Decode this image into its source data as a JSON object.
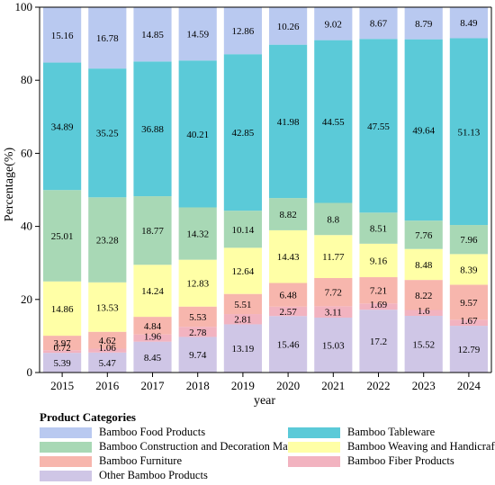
{
  "chart_data": {
    "type": "bar",
    "stacked": true,
    "title": "",
    "xlabel": "year",
    "ylabel": "Percentage(%)",
    "ylim": [
      0,
      100
    ],
    "yticks": [
      0,
      20,
      40,
      60,
      80,
      100
    ],
    "categories": [
      "2015",
      "2016",
      "2017",
      "2018",
      "2019",
      "2020",
      "2021",
      "2022",
      "2023",
      "2024"
    ],
    "series": [
      {
        "name": "Other Bamboo Products",
        "color": "#cfc6e6",
        "values": [
          5.39,
          5.47,
          8.45,
          9.74,
          13.19,
          15.46,
          15.03,
          17.2,
          15.52,
          12.79
        ]
      },
      {
        "name": "Bamboo Fiber Products",
        "color": "#f2b3c0",
        "values": [
          0.72,
          1.06,
          1.96,
          2.78,
          2.81,
          2.57,
          3.11,
          1.69,
          1.6,
          1.67
        ]
      },
      {
        "name": "Bamboo Furniture",
        "color": "#f7b6ad",
        "values": [
          3.97,
          4.62,
          4.84,
          5.53,
          5.51,
          6.48,
          7.72,
          7.21,
          8.22,
          9.57
        ]
      },
      {
        "name": "Bamboo Weaving and Handicrafts",
        "color": "#ffffa6",
        "values": [
          14.86,
          13.53,
          14.24,
          12.83,
          12.64,
          14.43,
          11.77,
          9.16,
          8.48,
          8.39
        ]
      },
      {
        "name": "Bamboo Construction and Decoration Materials",
        "color": "#a8d8b5",
        "values": [
          25.01,
          23.28,
          18.77,
          14.32,
          10.14,
          8.82,
          8.8,
          8.51,
          7.76,
          7.96
        ]
      },
      {
        "name": "Bamboo Tableware",
        "color": "#5bcad8",
        "values": [
          34.89,
          35.25,
          36.88,
          40.21,
          42.85,
          41.98,
          44.55,
          47.55,
          49.64,
          51.13
        ]
      },
      {
        "name": "Bamboo Food Products",
        "color": "#b9c9f0",
        "values": [
          15.16,
          16.78,
          14.85,
          14.59,
          12.86,
          10.26,
          9.02,
          8.67,
          8.79,
          8.49
        ]
      }
    ],
    "legend": {
      "title": "Product Categories",
      "placement": "bottom",
      "order": [
        "Bamboo Food Products",
        "Bamboo Tableware",
        "Bamboo Construction and Decoration Materials",
        "Bamboo Weaving and Handicrafts",
        "Bamboo Furniture",
        "Bamboo Fiber Products",
        "Other Bamboo Products"
      ]
    },
    "grid": false
  }
}
